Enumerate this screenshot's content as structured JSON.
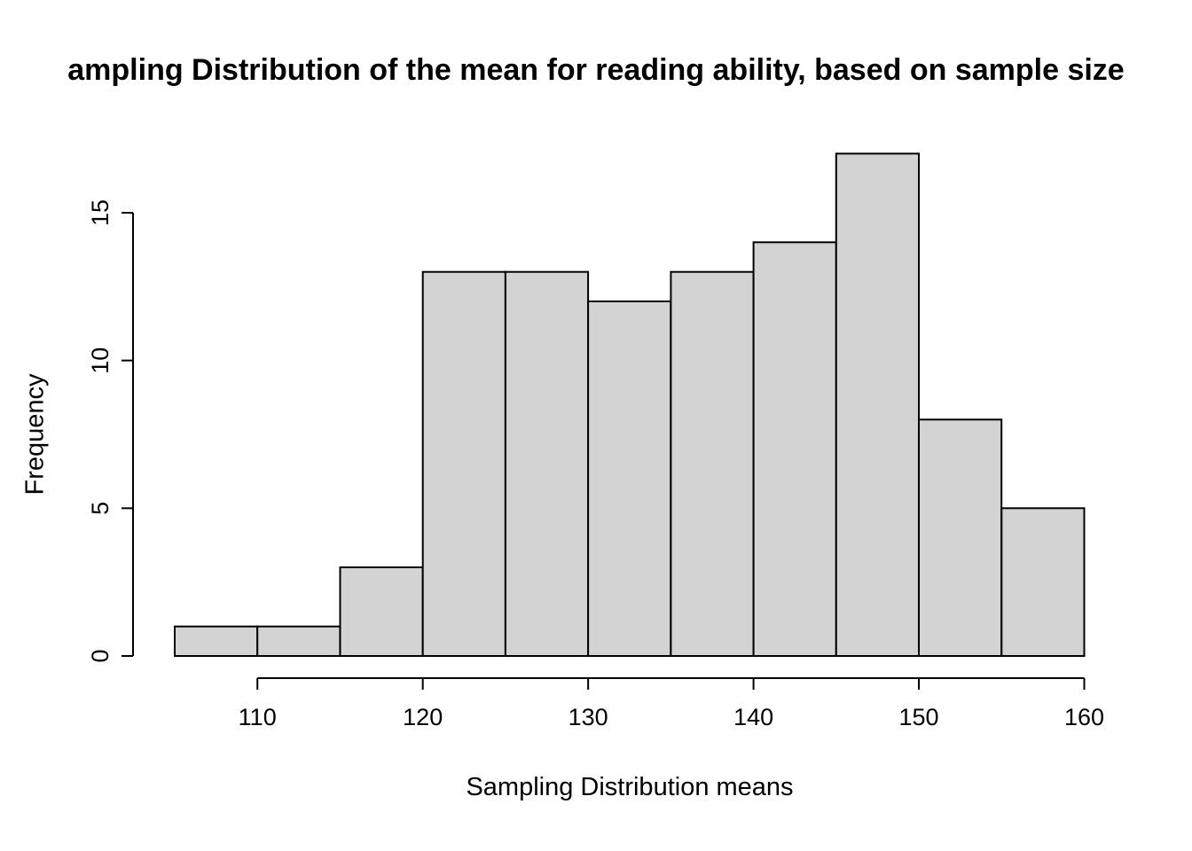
{
  "chart_data": {
    "type": "bar",
    "subtype": "histogram",
    "title": "ampling Distribution of the mean for reading ability, based on sample size",
    "xlabel": "Sampling Distribution means",
    "ylabel": "Frequency",
    "bin_start": 105,
    "bin_width": 5,
    "bin_edges": [
      105,
      110,
      115,
      120,
      125,
      130,
      135,
      140,
      145,
      150,
      155,
      160
    ],
    "counts": [
      1,
      1,
      3,
      13,
      13,
      12,
      13,
      14,
      17,
      8,
      5
    ],
    "x_ticks": [
      110,
      120,
      130,
      140,
      150,
      160
    ],
    "y_ticks": [
      0,
      5,
      10,
      15
    ],
    "xlim": [
      105,
      160
    ],
    "ylim": [
      0,
      17
    ],
    "grid": false,
    "legend": "none",
    "bar_fill": "#d3d3d3",
    "bar_stroke": "#000000",
    "axis_color": "#000000",
    "background": "#ffffff"
  }
}
